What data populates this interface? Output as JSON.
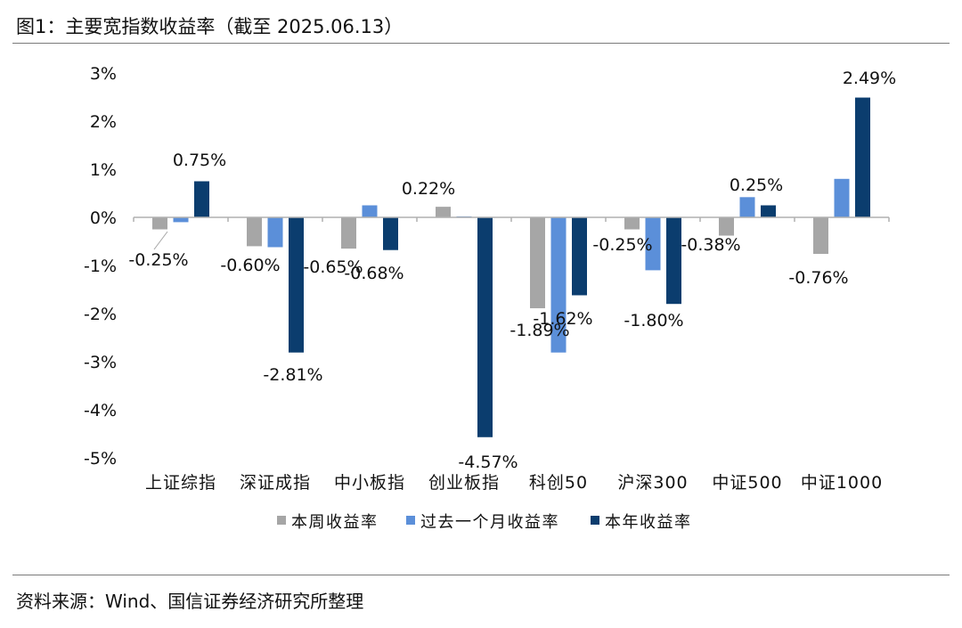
{
  "title": "图1：主要宽指数收益率（截至 2025.06.13）",
  "source": "资料来源：Wind、国信证券经济研究所整理",
  "chart_data": {
    "type": "bar",
    "categories": [
      "上证综指",
      "深证成指",
      "中小板指",
      "创业板指",
      "科创50",
      "沪深300",
      "中证500",
      "中证1000"
    ],
    "series": [
      {
        "name": "本周收益率",
        "color": "#a6a6a6",
        "values": [
          -0.25,
          -0.6,
          -0.65,
          0.22,
          -1.89,
          -0.25,
          -0.38,
          -0.76
        ]
      },
      {
        "name": "过去一个月收益率",
        "color": "#5b8fd9",
        "values": [
          -0.1,
          -0.62,
          0.25,
          0.02,
          -2.81,
          -1.1,
          0.42,
          0.8
        ]
      },
      {
        "name": "本年收益率",
        "color": "#0b3d6e",
        "values": [
          0.75,
          -2.81,
          -0.68,
          -4.57,
          -1.62,
          -1.8,
          0.25,
          2.49
        ]
      }
    ],
    "data_labels": [
      {
        "text": "-0.25%",
        "series": 0,
        "category": 0
      },
      {
        "text": "0.75%",
        "series": 2,
        "category": 0
      },
      {
        "text": "-0.60%",
        "series": 0,
        "category": 1
      },
      {
        "text": "-2.81%",
        "series": 2,
        "category": 1
      },
      {
        "text": "-0.65%",
        "series": 0,
        "category": 2
      },
      {
        "text": "-0.68%",
        "series": 2,
        "category": 2
      },
      {
        "text": "0.22%",
        "series": 0,
        "category": 3
      },
      {
        "text": "-4.57%",
        "series": 2,
        "category": 3
      },
      {
        "text": "-1.89%",
        "series": 0,
        "category": 4
      },
      {
        "text": "-1.62%",
        "series": 2,
        "category": 4
      },
      {
        "text": "-0.25%",
        "series": 0,
        "category": 5
      },
      {
        "text": "-1.80%",
        "series": 2,
        "category": 5
      },
      {
        "text": "-0.38%",
        "series": 0,
        "category": 6
      },
      {
        "text": "0.25%",
        "series": 2,
        "category": 6
      },
      {
        "text": "-0.76%",
        "series": 0,
        "category": 7
      },
      {
        "text": "2.49%",
        "series": 2,
        "category": 7
      }
    ],
    "y_ticks": [
      3,
      2,
      1,
      0,
      -1,
      -2,
      -3,
      -4,
      -5
    ],
    "y_tick_labels": [
      "3%",
      "2%",
      "1%",
      "0%",
      "-1%",
      "-2%",
      "-3%",
      "-4%",
      "-5%"
    ],
    "ylim": [
      -5,
      3
    ],
    "xlabel": "",
    "ylabel": "",
    "legend_position": "bottom",
    "grid": false
  }
}
